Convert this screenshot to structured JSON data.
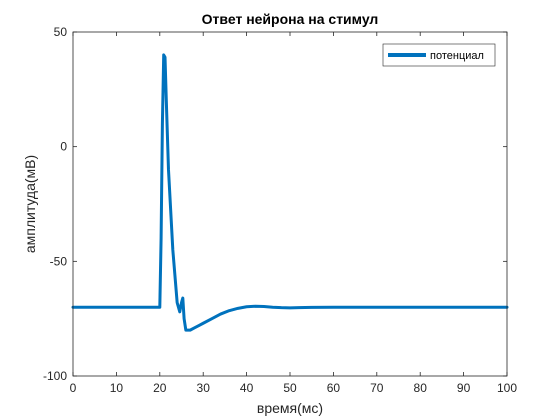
{
  "chart_data": {
    "type": "line",
    "title": "Ответ нейрона на стимул",
    "xlabel": "время(мс)",
    "ylabel": "амплитуда(мВ)",
    "xlim": [
      0,
      100
    ],
    "ylim": [
      -100,
      50
    ],
    "xticks": [
      0,
      10,
      20,
      30,
      40,
      50,
      60,
      70,
      80,
      90,
      100
    ],
    "yticks": [
      -100,
      -50,
      0,
      50
    ],
    "grid": false,
    "legend_position": "top-right",
    "series": [
      {
        "name": "потенциал",
        "color": "#0072bd",
        "x": [
          0,
          20,
          20.3,
          20.6,
          20.9,
          21.2,
          21.5,
          22,
          23,
          24,
          24.6,
          25,
          25.3,
          25.6,
          26,
          27,
          28,
          29,
          30,
          32,
          34,
          36,
          38,
          40,
          42,
          44,
          46,
          48,
          50,
          52,
          55,
          60,
          70,
          80,
          90,
          100
        ],
        "y": [
          -70,
          -70,
          -40,
          10,
          40,
          39,
          20,
          -10,
          -45,
          -68,
          -72,
          -68,
          -66,
          -75,
          -80,
          -80,
          -79,
          -78,
          -77,
          -75,
          -73,
          -71.5,
          -70.5,
          -69.8,
          -69.6,
          -69.7,
          -70,
          -70.2,
          -70.3,
          -70.2,
          -70.1,
          -70,
          -70,
          -70,
          -70,
          -70
        ]
      }
    ]
  }
}
